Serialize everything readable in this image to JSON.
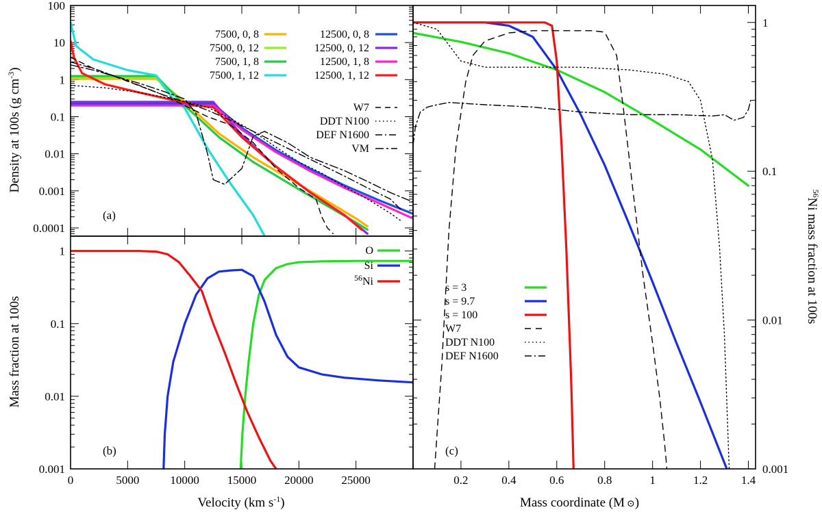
{
  "chart_data": [
    {
      "id": "a",
      "type": "line",
      "panel_label": "(a)",
      "ylabel_main": "Density at 100s (g cm",
      "ylabel_sup": "-3",
      "ylabel_end": ")",
      "yscale": "log",
      "xlim": [
        0,
        30000
      ],
      "ylim": [
        6e-05,
        100
      ],
      "yticks": [
        {
          "v": 100,
          "t": "100"
        },
        {
          "v": 10,
          "t": "10"
        },
        {
          "v": 1,
          "t": "1"
        },
        {
          "v": 0.1,
          "t": "0.1"
        },
        {
          "v": 0.01,
          "t": "0.01"
        },
        {
          "v": 0.001,
          "t": "0.001"
        },
        {
          "v": 0.0001,
          "t": "0.0001"
        }
      ],
      "series": [
        {
          "name": "7500, 0, 8",
          "color": "#ffb000",
          "x": [
            0,
            7500,
            10000,
            13000,
            16000,
            20000,
            25000,
            26000
          ],
          "y": [
            1.05,
            1.05,
            0.25,
            0.035,
            0.008,
            0.0015,
            0.00018,
            0.00011
          ]
        },
        {
          "name": "7500, 0, 12",
          "color": "#99ee22",
          "x": [
            0,
            7500,
            9000,
            10000,
            12000,
            14000,
            16000,
            17000
          ],
          "y": [
            1.15,
            1.15,
            0.3,
            0.17,
            0.0137,
            0.0016,
            0.00022,
            6e-05
          ]
        },
        {
          "name": "7500, 1, 8",
          "color": "#22cc44",
          "x": [
            0,
            7500,
            10000,
            13000,
            16000,
            20000,
            25000,
            26000
          ],
          "y": [
            1.25,
            1.25,
            0.2,
            0.028,
            0.006,
            0.0011,
            0.00014,
            9e-05
          ]
        },
        {
          "name": "7500, 1, 12",
          "color": "#22dddd",
          "x": [
            0,
            500,
            2000,
            5000,
            7500,
            9000,
            10000,
            12000,
            14000,
            16000,
            17000
          ],
          "y": [
            35,
            8,
            3.5,
            1.8,
            1.3,
            0.3,
            0.17,
            0.0137,
            0.0016,
            0.00022,
            6e-05
          ]
        },
        {
          "name": "12500, 0, 8",
          "color": "#1f4fe8",
          "x": [
            0,
            12500,
            15000,
            18000,
            21000,
            24000,
            27000,
            30000
          ],
          "y": [
            0.22,
            0.22,
            0.05,
            0.0125,
            0.0039,
            0.0014,
            0.00056,
            0.00024
          ]
        },
        {
          "name": "12500, 0, 12",
          "color": "#8a2be2",
          "x": [
            0,
            12500,
            15000,
            18000,
            21000,
            24000,
            26000
          ],
          "y": [
            0.25,
            0.25,
            0.032,
            0.0045,
            0.0009,
            0.00022,
            7e-05
          ]
        },
        {
          "name": "12500, 1, 8",
          "color": "#ff22cc",
          "x": [
            0,
            12500,
            15000,
            18000,
            21000,
            24000,
            27000,
            30000
          ],
          "y": [
            0.2,
            0.2,
            0.045,
            0.011,
            0.0034,
            0.0012,
            0.00047,
            0.00018
          ]
        },
        {
          "name": "12500, 1, 12",
          "color": "#ff1a1a",
          "x": [
            0,
            300,
            1000,
            3000,
            6000,
            9000,
            11000,
            12500,
            15000,
            18000,
            21000,
            24000,
            25500
          ],
          "y": [
            11,
            4,
            1.5,
            0.75,
            0.45,
            0.28,
            0.2,
            0.18,
            0.028,
            0.0045,
            0.0009,
            0.00022,
            9e-05
          ]
        },
        {
          "name": "W7",
          "color": "#000000",
          "dash": "8,6",
          "x": [
            0,
            2000,
            5000,
            8000,
            10000,
            12000,
            14000,
            16000,
            18000,
            20000,
            21500,
            22000,
            22500,
            23000
          ],
          "y": [
            4,
            2,
            0.9,
            0.4,
            0.2,
            0.1,
            0.06,
            0.02,
            0.004,
            0.0012,
            0.0006,
            0.0002,
            0.0001,
            7e-05
          ]
        },
        {
          "name": "DDT N100",
          "color": "#000000",
          "dash": "1.5,4",
          "x": [
            0,
            3000,
            6000,
            9000,
            12000,
            14000,
            16000,
            18000,
            20000,
            22000,
            24000,
            26000,
            28000,
            29000
          ],
          "y": [
            0.7,
            0.6,
            0.45,
            0.3,
            0.18,
            0.09,
            0.04,
            0.015,
            0.006,
            0.003,
            0.0013,
            0.0006,
            0.00025,
            0.00015
          ]
        },
        {
          "name": "DEF N1600",
          "color": "#000000",
          "dash": "10,4,2,4",
          "x": [
            0,
            2000,
            4000,
            6000,
            8000,
            10000,
            12000,
            14000,
            16000,
            18000,
            20000,
            22000,
            24000,
            26000,
            28000,
            29000
          ],
          "y": [
            3,
            2,
            1.2,
            0.7,
            0.4,
            0.25,
            0.15,
            0.08,
            0.04,
            0.02,
            0.01,
            0.005,
            0.0025,
            0.0012,
            0.0006,
            0.0003
          ]
        },
        {
          "name": "VM",
          "color": "#000000",
          "dash": "12,4,3,4",
          "x": [
            0,
            2000,
            4000,
            6000,
            8000,
            10000,
            11000,
            12000,
            12500,
            13500,
            15000,
            16000,
            17000,
            19000,
            21000,
            24000,
            26000,
            28000,
            30000
          ],
          "y": [
            2.5,
            1.8,
            1.2,
            0.8,
            0.5,
            0.3,
            0.12,
            0.01,
            0.002,
            0.0015,
            0.004,
            0.03,
            0.04,
            0.02,
            0.008,
            0.0035,
            0.0018,
            0.0009,
            0.0005
          ]
        }
      ]
    },
    {
      "id": "b",
      "type": "line",
      "panel_label": "(b)",
      "xlabel_main": "Velocity (km s",
      "xlabel_sup": "-1",
      "xlabel_end": ")",
      "ylabel": "Mass fraction at 100s",
      "yscale": "log",
      "xlim": [
        0,
        30000
      ],
      "ylim": [
        0.001,
        1.6
      ],
      "xticks": [
        0,
        5000,
        10000,
        15000,
        20000,
        25000
      ],
      "yticks": [
        {
          "v": 1,
          "t": "1"
        },
        {
          "v": 0.1,
          "t": "0.1"
        },
        {
          "v": 0.01,
          "t": "0.01"
        },
        {
          "v": 0.001,
          "t": "0.001"
        }
      ],
      "series": [
        {
          "name": "O",
          "color": "#22dd22",
          "x": [
            14900,
            15050,
            15300,
            15600,
            16000,
            16500,
            17000,
            18000,
            19000,
            20000,
            22000,
            25000,
            30000
          ],
          "y": [
            0.001,
            0.003,
            0.01,
            0.03,
            0.1,
            0.25,
            0.4,
            0.58,
            0.66,
            0.7,
            0.72,
            0.73,
            0.73
          ]
        },
        {
          "name": "Si",
          "color": "#1a2ee0",
          "x": [
            8150,
            8250,
            8500,
            9000,
            10000,
            11000,
            12000,
            13000,
            14000,
            15000,
            16000,
            17000,
            18000,
            19000,
            20000,
            22000,
            24000,
            27000,
            30000
          ],
          "y": [
            0.001,
            0.003,
            0.01,
            0.03,
            0.1,
            0.25,
            0.42,
            0.52,
            0.54,
            0.55,
            0.45,
            0.2,
            0.07,
            0.035,
            0.025,
            0.02,
            0.018,
            0.0165,
            0.0155
          ]
        },
        {
          "name": "56Ni",
          "sup": "56",
          "label": "Ni",
          "color": "#ee1111",
          "x": [
            0,
            6000,
            7500,
            8500,
            9500,
            10500,
            11500,
            12500,
            13500,
            14500,
            15500,
            16500,
            17500,
            18000
          ],
          "y": [
            1,
            1,
            0.98,
            0.9,
            0.7,
            0.45,
            0.28,
            0.1,
            0.04,
            0.015,
            0.006,
            0.0027,
            0.0013,
            0.001
          ]
        }
      ]
    },
    {
      "id": "c",
      "type": "line",
      "panel_label": "(c)",
      "xlabel": "Mass coordinate (M",
      "xlabel_sym": "⊙",
      "xlabel_end": ")",
      "ylabel_sup": "56",
      "ylabel": "Ni mass fraction at 100s",
      "yscale": "log",
      "xlim": [
        0,
        1.43
      ],
      "ylim": [
        0.001,
        1.3
      ],
      "xticks": [
        {
          "v": 0.2,
          "t": "0.2"
        },
        {
          "v": 0.4,
          "t": "0.4"
        },
        {
          "v": 0.6,
          "t": "0.6"
        },
        {
          "v": 0.8,
          "t": "0.8"
        },
        {
          "v": 1.0,
          "t": "1"
        },
        {
          "v": 1.2,
          "t": "1.2"
        },
        {
          "v": 1.4,
          "t": "1.4"
        }
      ],
      "yticks": [
        {
          "v": 1,
          "t": "1"
        },
        {
          "v": 0.1,
          "t": "0.1"
        },
        {
          "v": 0.01,
          "t": "0.01"
        },
        {
          "v": 0.001,
          "t": "0.001"
        }
      ],
      "series": [
        {
          "name": "s = 3",
          "color": "#22dd22",
          "x": [
            0,
            0.2,
            0.4,
            0.6,
            0.8,
            1.0,
            1.2,
            1.4
          ],
          "y": [
            0.85,
            0.74,
            0.62,
            0.48,
            0.34,
            0.22,
            0.14,
            0.08
          ]
        },
        {
          "name": "s = 9.7",
          "color": "#1a2ee0",
          "x": [
            0,
            0.3,
            0.4,
            0.5,
            0.6,
            0.7,
            0.8,
            0.9,
            1.0,
            1.1,
            1.2,
            1.31
          ],
          "y": [
            1,
            1,
            0.95,
            0.8,
            0.48,
            0.24,
            0.11,
            0.045,
            0.018,
            0.007,
            0.0028,
            0.001
          ]
        },
        {
          "name": "s = 100",
          "color": "#ee1111",
          "x": [
            0,
            0.55,
            0.58,
            0.6,
            0.62,
            0.64,
            0.66,
            0.67
          ],
          "y": [
            1,
            1,
            0.95,
            0.55,
            0.15,
            0.03,
            0.004,
            0.001
          ]
        },
        {
          "name": "W7",
          "color": "#000000",
          "dash": "9,7",
          "x": [
            0.09,
            0.12,
            0.15,
            0.18,
            0.22,
            0.25,
            0.3,
            0.4,
            0.5,
            0.6,
            0.75,
            0.8,
            0.85,
            0.88,
            0.92,
            0.96,
            1.0,
            1.03,
            1.05,
            1.06
          ],
          "y": [
            0.001,
            0.005,
            0.04,
            0.15,
            0.4,
            0.6,
            0.75,
            0.85,
            0.88,
            0.88,
            0.88,
            0.86,
            0.6,
            0.25,
            0.07,
            0.02,
            0.007,
            0.003,
            0.0015,
            0.001
          ]
        },
        {
          "name": "DDT N100",
          "color": "#000000",
          "dash": "1.5,4",
          "x": [
            0,
            0.1,
            0.2,
            0.3,
            0.5,
            0.7,
            0.9,
            1.05,
            1.15,
            1.2,
            1.25,
            1.28,
            1.3,
            1.32
          ],
          "y": [
            1,
            0.9,
            0.55,
            0.5,
            0.5,
            0.5,
            0.48,
            0.45,
            0.4,
            0.3,
            0.12,
            0.03,
            0.008,
            0.001
          ]
        },
        {
          "name": "DEF N1600",
          "color": "#000000",
          "dash": "10,4,2,4",
          "x": [
            0,
            0.01,
            0.03,
            0.06,
            0.1,
            0.15,
            0.3,
            0.5,
            0.7,
            0.9,
            1.1,
            1.25,
            1.3,
            1.34,
            1.38,
            1.4,
            1.41
          ],
          "y": [
            0.15,
            0.2,
            0.25,
            0.27,
            0.28,
            0.29,
            0.28,
            0.27,
            0.25,
            0.24,
            0.24,
            0.235,
            0.24,
            0.22,
            0.23,
            0.26,
            0.3
          ]
        }
      ]
    }
  ]
}
